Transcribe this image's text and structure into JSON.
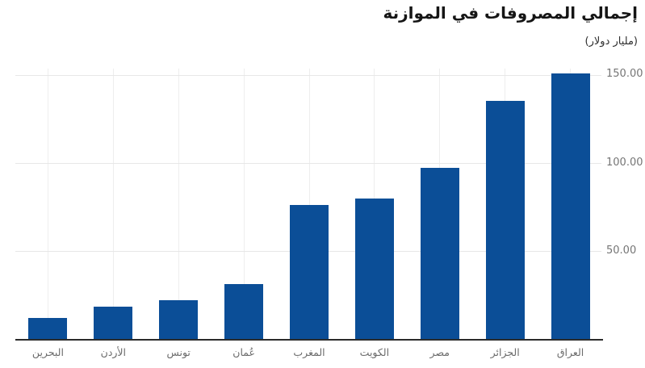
{
  "chart_data": {
    "type": "bar",
    "title": "إجمالي المصروفات في الموازنة",
    "subtitle": "(مليار دولار)",
    "ylabel": "مليار دولار",
    "xlabel": "",
    "categories": [
      "البحرين",
      "الأردن",
      "تونس",
      "عُمان",
      "المغرب",
      "الكويت",
      "مصر",
      "الجزائر",
      "العراق"
    ],
    "values": [
      12.2,
      18.6,
      22.4,
      31.6,
      76.5,
      80.1,
      97.5,
      135.4,
      151.2
    ],
    "ylim": [
      0,
      153.8
    ],
    "yticks": [
      {
        "value": 50,
        "label": "50.00"
      },
      {
        "value": 100,
        "label": "100.00"
      },
      {
        "value": 150,
        "label": "150.00"
      }
    ],
    "bar_color": "#0b4e97",
    "axis_color": "#2b2b2b",
    "hgrid_color": "#e7e7e7",
    "vgrid_color": "#eeeeee",
    "ytick_label_color": "#757575",
    "category_label_color": "#6b6b6b",
    "grid": true,
    "legend": "none",
    "y_labels_position": "right",
    "x_labels_position": "bottom",
    "bar_order": "ascending-left-to-right"
  }
}
